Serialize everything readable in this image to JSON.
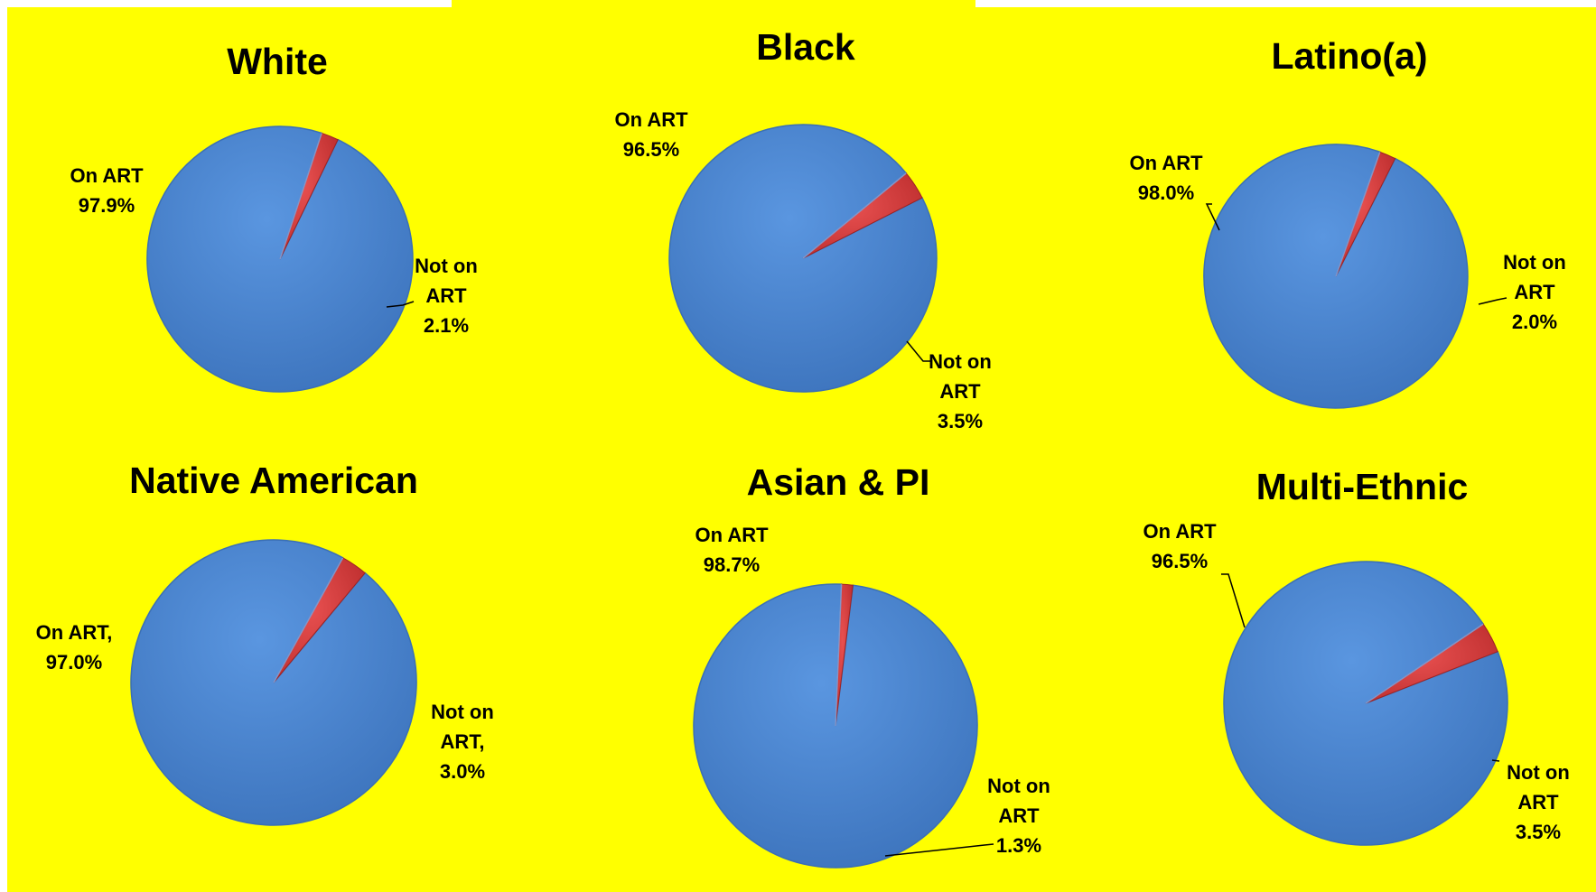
{
  "colors": {
    "background": "#ffff00",
    "on_art": "#4a86d3",
    "not_on_art": "#d83a3a",
    "leader": "#000000"
  },
  "chart_data": [
    {
      "type": "pie",
      "title": "White",
      "slices": [
        {
          "label_lines": [
            "On ART",
            "97.9%"
          ],
          "value": 97.9
        },
        {
          "label_lines": [
            "Not on",
            "ART",
            "2.1%"
          ],
          "value": 2.1
        }
      ]
    },
    {
      "type": "pie",
      "title": "Black",
      "slices": [
        {
          "label_lines": [
            "On ART",
            "96.5%"
          ],
          "value": 96.5
        },
        {
          "label_lines": [
            "Not on",
            "ART",
            "3.5%"
          ],
          "value": 3.5
        }
      ]
    },
    {
      "type": "pie",
      "title": "Latino(a)",
      "slices": [
        {
          "label_lines": [
            "On ART",
            "98.0%"
          ],
          "value": 98.0
        },
        {
          "label_lines": [
            "Not on",
            "ART",
            "2.0%"
          ],
          "value": 2.0
        }
      ]
    },
    {
      "type": "pie",
      "title": "Native American",
      "slices": [
        {
          "label_lines": [
            "On ART,",
            "97.0%"
          ],
          "value": 97.0
        },
        {
          "label_lines": [
            "Not on",
            "ART,",
            "3.0%"
          ],
          "value": 3.0
        }
      ]
    },
    {
      "type": "pie",
      "title": "Asian & PI",
      "slices": [
        {
          "label_lines": [
            "On ART",
            "98.7%"
          ],
          "value": 98.7
        },
        {
          "label_lines": [
            "Not on",
            "ART",
            "1.3%"
          ],
          "value": 1.3
        }
      ]
    },
    {
      "type": "pie",
      "title": "Multi-Ethnic",
      "slices": [
        {
          "label_lines": [
            "On ART",
            "96.5%"
          ],
          "value": 96.5
        },
        {
          "label_lines": [
            "Not on",
            "ART",
            "3.5%"
          ],
          "value": 3.5
        }
      ]
    }
  ]
}
